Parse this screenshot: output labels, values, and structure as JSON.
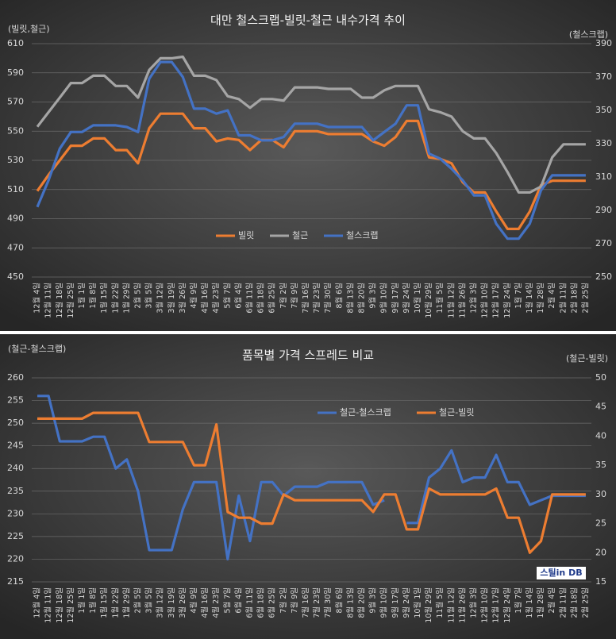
{
  "chart_data": [
    {
      "type": "line",
      "title": "대만 철스크랩-빌릿-철근 내수가격 추이",
      "ylabel": "(빌릿,철근)",
      "y2label": "(철스크랩)",
      "categories": [
        "12월 4일",
        "12월 11일",
        "12월 18일",
        "12월 25일",
        "1월 1일",
        "1월 8일",
        "1월 15일",
        "1월 22일",
        "1월 29일",
        "2월 5일",
        "3월 5일",
        "3월 12일",
        "3월 19일",
        "3월 26일",
        "4월 9일",
        "4월 16일",
        "4월 23일",
        "5월 7일",
        "6월 4일",
        "6월 11일",
        "6월 18일",
        "6월 25일",
        "7월 2일",
        "7월 9일",
        "7월 16일",
        "7월 23일",
        "7월 30일",
        "8월 6일",
        "8월 13일",
        "8월 20일",
        "9월 3일",
        "9월 10일",
        "9월 17일",
        "9월 24일",
        "10월 1일",
        "10월 29일",
        "11월 5일",
        "11월 12일",
        "11월 26일",
        "12월 3일",
        "12월 10일",
        "12월 17일",
        "12월 24일",
        "1월 7일",
        "1월 14일",
        "1월 28일",
        "2월 4일",
        "2월 11일",
        "2월 18일",
        "2월 25일"
      ],
      "series": [
        {
          "name": "빌릿",
          "color": "#ed7d31",
          "values": [
            509,
            520,
            530,
            540,
            540,
            545,
            545,
            537,
            537,
            528,
            552,
            562,
            562,
            562,
            552,
            552,
            543,
            545,
            544,
            537,
            544,
            544,
            539,
            550,
            550,
            550,
            548,
            548,
            548,
            548,
            543,
            540,
            546,
            557,
            557,
            532,
            531,
            528,
            515,
            508,
            508,
            495,
            483,
            483,
            495,
            513,
            516,
            516,
            516,
            516
          ]
        },
        {
          "name": "철근",
          "color": "#a5a5a5",
          "values": [
            553,
            563,
            573,
            583,
            583,
            588,
            588,
            581,
            581,
            573,
            592,
            600,
            600,
            601,
            588,
            588,
            585,
            574,
            572,
            566,
            572,
            572,
            571,
            580,
            580,
            580,
            579,
            579,
            579,
            573,
            573,
            578,
            581,
            581,
            581,
            565,
            563,
            560,
            550,
            545,
            545,
            535,
            522,
            508,
            508,
            512,
            532,
            541,
            541,
            541
          ]
        },
        {
          "name": "철스크랩",
          "color": "#4472c4",
          "axis": "y2",
          "values": [
            292,
            308,
            327,
            337,
            337,
            341,
            341,
            341,
            340,
            337,
            369,
            379,
            379,
            370,
            351,
            351,
            348,
            350,
            335,
            335,
            332,
            332,
            334,
            342,
            342,
            342,
            340,
            340,
            340,
            340,
            332,
            337,
            342,
            353,
            353,
            324,
            321,
            315,
            308,
            299,
            299,
            282,
            273,
            273,
            282,
            302,
            311,
            311,
            311,
            311
          ]
        }
      ],
      "ylim": [
        450,
        610
      ],
      "yticks": [
        450,
        470,
        490,
        510,
        530,
        550,
        570,
        590,
        610
      ],
      "y2lim": [
        250,
        390
      ],
      "y2ticks": [
        250,
        270,
        290,
        310,
        330,
        350,
        370,
        390
      ],
      "grid": true,
      "legend": "bottom-center"
    },
    {
      "type": "line",
      "title": "품목별 가격 스프레드 비교",
      "ylabel": "(철근-철스크랩)",
      "y2label": "(철근-빌릿)",
      "annotation": "스틸in DB",
      "categories": [
        "12월 4일",
        "12월 11일",
        "12월 18일",
        "12월 25일",
        "1월 1일",
        "1월 8일",
        "1월 15일",
        "1월 22일",
        "1월 29일",
        "2월 5일",
        "3월 5일",
        "3월 12일",
        "3월 19일",
        "3월 26일",
        "4월 9일",
        "4월 16일",
        "4월 23일",
        "5월 7일",
        "6월 4일",
        "6월 11일",
        "6월 18일",
        "6월 25일",
        "7월 2일",
        "7월 9일",
        "7월 16일",
        "7월 23일",
        "7월 30일",
        "8월 6일",
        "8월 13일",
        "8월 20일",
        "9월 3일",
        "9월 10일",
        "9월 17일",
        "9월 24일",
        "10월 1일",
        "10월 29일",
        "11월 5일",
        "11월 12일",
        "11월 26일",
        "12월 3일",
        "12월 10일",
        "12월 17일",
        "12월 24일",
        "1월 7일",
        "1월 14일",
        "1월 28일",
        "2월 4일",
        "2월 11일",
        "2월 18일",
        "2월 25일"
      ],
      "series": [
        {
          "name": "철근-철스크랩",
          "color": "#4472c4",
          "values": [
            256,
            256,
            246,
            246,
            246,
            247,
            247,
            240,
            242,
            235,
            222,
            222,
            222,
            231,
            237,
            237,
            237,
            220,
            234,
            224,
            237,
            237,
            234,
            236,
            236,
            236,
            237,
            237,
            237,
            237,
            232,
            233,
            null,
            228,
            228,
            238,
            240,
            244,
            237,
            238,
            238,
            243,
            237,
            237,
            232,
            233,
            234,
            234,
            234,
            234
          ]
        },
        {
          "name": "철근-빌릿",
          "color": "#ed7d31",
          "axis": "y2",
          "values": [
            43,
            43,
            43,
            43,
            43,
            44,
            44,
            44,
            44,
            44,
            39,
            39,
            39,
            39,
            35,
            35,
            42,
            27,
            26,
            26,
            25,
            25,
            30,
            29,
            29,
            29,
            29,
            29,
            29,
            29,
            27,
            30,
            30,
            24,
            24,
            31,
            30,
            30,
            30,
            30,
            30,
            31,
            26,
            26,
            20,
            22,
            30,
            30,
            30,
            30
          ]
        }
      ],
      "ylim": [
        215,
        260
      ],
      "yticks": [
        215,
        220,
        225,
        230,
        235,
        240,
        245,
        250,
        255,
        260
      ],
      "y2lim": [
        15,
        50
      ],
      "y2ticks": [
        15,
        20,
        25,
        30,
        35,
        40,
        45,
        50
      ],
      "grid": true,
      "legend": "top-right"
    }
  ]
}
